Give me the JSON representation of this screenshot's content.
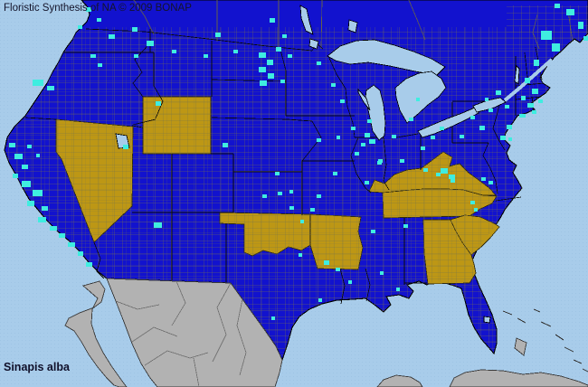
{
  "header": {
    "title": "Floristic Synthesis of NA © 2009 BONAP"
  },
  "footer": {
    "species_label": "Sinapis alba"
  },
  "map": {
    "colors": {
      "ocean": "#A8CCEA",
      "ocean_dither": "#97BEE0",
      "land_present": "#1212CE",
      "state_absent": "#BD9715",
      "county_documented": "#3FEDE0",
      "foreign_land": "#B2B2B2",
      "foreign_border": "#6E6E6E",
      "inland_water": "#A8CCEA",
      "state_border": "#0A0A0A",
      "county_line": "#7B7448",
      "canada_division_line": "#6E6A3E"
    },
    "states": [
      {
        "id": "nevada",
        "name": "Nevada",
        "status": "absent"
      },
      {
        "id": "wyoming",
        "name": "Wyoming",
        "status": "absent"
      },
      {
        "id": "oklahoma",
        "name": "Oklahoma",
        "status": "absent"
      },
      {
        "id": "arkansas",
        "name": "Arkansas",
        "status": "absent"
      },
      {
        "id": "kentucky",
        "name": "Kentucky",
        "status": "absent"
      },
      {
        "id": "tennessee",
        "name": "Tennessee",
        "status": "absent"
      },
      {
        "id": "south-carolina",
        "name": "South Carolina",
        "status": "absent"
      },
      {
        "id": "georgia",
        "name": "Georgia",
        "status": "absent"
      }
    ],
    "county_markers": [
      [
        10,
        158,
        7,
        5
      ],
      [
        16,
        170,
        9,
        6
      ],
      [
        24,
        182,
        7,
        5
      ],
      [
        14,
        192,
        6,
        5
      ],
      [
        24,
        200,
        10,
        7
      ],
      [
        36,
        210,
        11,
        7
      ],
      [
        30,
        222,
        8,
        6
      ],
      [
        46,
        228,
        7,
        5
      ],
      [
        42,
        240,
        9,
        6
      ],
      [
        55,
        250,
        8,
        5
      ],
      [
        65,
        258,
        7,
        5
      ],
      [
        75,
        268,
        8,
        5
      ],
      [
        86,
        278,
        6,
        5
      ],
      [
        95,
        290,
        7,
        5
      ],
      [
        30,
        160,
        5,
        4
      ],
      [
        40,
        170,
        4,
        4
      ],
      [
        120,
        38,
        7,
        5
      ],
      [
        146,
        30,
        6,
        5
      ],
      [
        100,
        60,
        6,
        4
      ],
      [
        36,
        88,
        12,
        7
      ],
      [
        52,
        95,
        8,
        5
      ],
      [
        108,
        70,
        5,
        4
      ],
      [
        162,
        45,
        8,
        6
      ],
      [
        172,
        112,
        6,
        5
      ],
      [
        148,
        60,
        5,
        4
      ],
      [
        190,
        55,
        5,
        4
      ],
      [
        238,
        36,
        6,
        5
      ],
      [
        258,
        55,
        5,
        4
      ],
      [
        298,
        20,
        6,
        5
      ],
      [
        312,
        38,
        5,
        4
      ],
      [
        225,
        60,
        5,
        4
      ],
      [
        286,
        58,
        8,
        6
      ],
      [
        295,
        66,
        7,
        6
      ],
      [
        286,
        74,
        8,
        6
      ],
      [
        296,
        81,
        7,
        6
      ],
      [
        287,
        89,
        8,
        6
      ],
      [
        305,
        52,
        6,
        5
      ],
      [
        310,
        88,
        5,
        4
      ],
      [
        318,
        60,
        5,
        4
      ],
      [
        136,
        160,
        6,
        5
      ],
      [
        170,
        246,
        9,
        6
      ],
      [
        246,
        158,
        6,
        5
      ],
      [
        304,
        190,
        5,
        4
      ],
      [
        290,
        215,
        5,
        4
      ],
      [
        320,
        228,
        5,
        4
      ],
      [
        350,
        68,
        5,
        4
      ],
      [
        366,
        92,
        5,
        4
      ],
      [
        376,
        110,
        5,
        4
      ],
      [
        406,
        132,
        5,
        4
      ],
      [
        388,
        140,
        5,
        4
      ],
      [
        372,
        150,
        4,
        4
      ],
      [
        350,
        153,
        5,
        4
      ],
      [
        392,
        168,
        5,
        4
      ],
      [
        417,
        178,
        5,
        4
      ],
      [
        368,
        190,
        5,
        4
      ],
      [
        403,
        200,
        5,
        4
      ],
      [
        350,
        215,
        5,
        4
      ],
      [
        307,
        212,
        5,
        4
      ],
      [
        320,
        210,
        4,
        4
      ],
      [
        343,
        230,
        5,
        4
      ],
      [
        332,
        243,
        4,
        4
      ],
      [
        403,
        147,
        6,
        5
      ],
      [
        408,
        154,
        7,
        5
      ],
      [
        399,
        158,
        5,
        4
      ],
      [
        433,
        149,
        5,
        4
      ],
      [
        418,
        176,
        5,
        4
      ],
      [
        442,
        176,
        5,
        4
      ],
      [
        465,
        162,
        5,
        4
      ],
      [
        452,
        130,
        5,
        4
      ],
      [
        460,
        108,
        4,
        4
      ],
      [
        476,
        150,
        5,
        4
      ],
      [
        486,
        140,
        5,
        4
      ],
      [
        508,
        149,
        5,
        4
      ],
      [
        530,
        139,
        6,
        5
      ],
      [
        520,
        128,
        5,
        4
      ],
      [
        540,
        120,
        5,
        4
      ],
      [
        548,
        100,
        6,
        5
      ],
      [
        558,
        116,
        5,
        4
      ],
      [
        560,
        138,
        6,
        5
      ],
      [
        553,
        150,
        6,
        5
      ],
      [
        562,
        152,
        4,
        4
      ],
      [
        536,
        108,
        4,
        4
      ],
      [
        598,
        34,
        12,
        10
      ],
      [
        610,
        48,
        9,
        9
      ],
      [
        590,
        66,
        6,
        7
      ],
      [
        580,
        86,
        6,
        6
      ],
      [
        588,
        98,
        7,
        6
      ],
      [
        576,
        106,
        5,
        5
      ],
      [
        583,
        114,
        7,
        5
      ],
      [
        595,
        110,
        5,
        4
      ],
      [
        574,
        126,
        7,
        4
      ],
      [
        588,
        122,
        5,
        4
      ],
      [
        95,
        8,
        6,
        5
      ],
      [
        107,
        20,
        5,
        4
      ],
      [
        86,
        28,
        5,
        4
      ],
      [
        626,
        10,
        9,
        7
      ],
      [
        639,
        24,
        6,
        8
      ],
      [
        613,
        4,
        6,
        5
      ],
      [
        645,
        40,
        5,
        5
      ],
      [
        487,
        186,
        8,
        6
      ],
      [
        496,
        193,
        7,
        5
      ],
      [
        482,
        191,
        5,
        4
      ],
      [
        498,
        198,
        5,
        4
      ],
      [
        468,
        186,
        5,
        4
      ],
      [
        358,
        288,
        6,
        5
      ],
      [
        371,
        296,
        5,
        4
      ],
      [
        410,
        254,
        5,
        4
      ],
      [
        446,
        248,
        5,
        4
      ],
      [
        520,
        222,
        5,
        4
      ],
      [
        532,
        196,
        5,
        4
      ],
      [
        300,
        350,
        4,
        4
      ],
      [
        330,
        280,
        4,
        4
      ],
      [
        352,
        330,
        4,
        4
      ],
      [
        385,
        310,
        4,
        4
      ],
      [
        420,
        300,
        4,
        4
      ],
      [
        438,
        318,
        4,
        4
      ],
      [
        540,
        200,
        5,
        4
      ],
      [
        524,
        230,
        4,
        4
      ]
    ]
  }
}
